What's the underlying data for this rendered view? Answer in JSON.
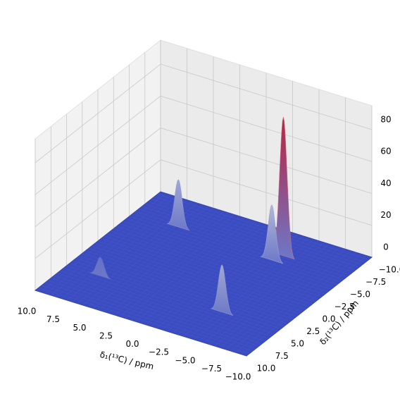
{
  "chart_data": {
    "type": "surface3d",
    "xlabel": "δ₁(¹³C) / ppm",
    "ylabel": "δ₂(¹³C) / ppm",
    "xlim": [
      -10,
      10
    ],
    "ylim": [
      -10,
      10
    ],
    "zlim": [
      0,
      95
    ],
    "xticks": [
      {
        "value": 10,
        "label": "10.0"
      },
      {
        "value": 7.5,
        "label": "7.5"
      },
      {
        "value": 5,
        "label": "5.0"
      },
      {
        "value": 2.5,
        "label": "2.5"
      },
      {
        "value": 0,
        "label": "0.0"
      },
      {
        "value": -2.5,
        "label": "−2.5"
      },
      {
        "value": -5,
        "label": "−5.0"
      },
      {
        "value": -7.5,
        "label": "−7.5"
      },
      {
        "value": -10,
        "label": "−10.0"
      }
    ],
    "yticks": [
      {
        "value": 10,
        "label": "10.0"
      },
      {
        "value": 7.5,
        "label": "7.5"
      },
      {
        "value": 5,
        "label": "5.0"
      },
      {
        "value": 2.5,
        "label": "2.5"
      },
      {
        "value": 0,
        "label": "0.0"
      },
      {
        "value": -2.5,
        "label": "−2.5"
      },
      {
        "value": -5,
        "label": "−5.0"
      },
      {
        "value": -7.5,
        "label": "−7.5"
      },
      {
        "value": -10,
        "label": "−10.0"
      }
    ],
    "zticks": [
      0,
      20,
      40,
      60,
      80
    ],
    "grid": true,
    "colormap": "coolwarm",
    "peaks": [
      {
        "x": 5.7,
        "y": -5.6,
        "height": 30
      },
      {
        "x": -4,
        "y": -6,
        "height": 88
      },
      {
        "x": -3.5,
        "y": -5,
        "height": 35
      },
      {
        "x": 6.8,
        "y": 5,
        "height": 12
      },
      {
        "x": -4.6,
        "y": 4.8,
        "height": 30
      }
    ]
  }
}
